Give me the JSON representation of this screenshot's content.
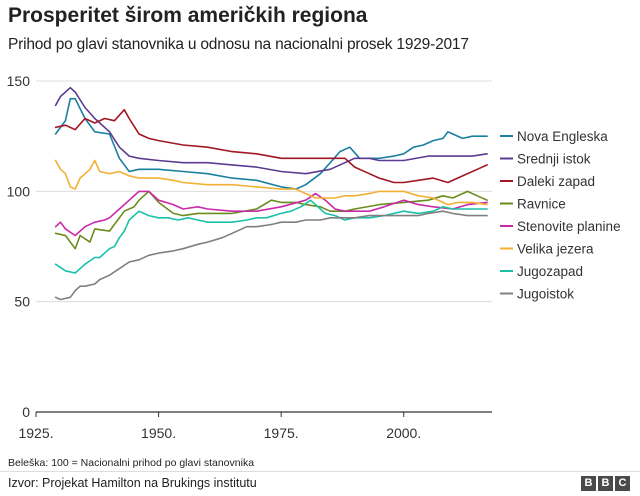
{
  "header": {
    "title": "Prosperitet širom američkih regiona",
    "subtitle": "Prihod po glavi stanovnika u odnosu na nacionalni prosek 1929-2017"
  },
  "footer": {
    "note": "Beleška: 100 = Nacionalni prihod po glavi stanovnika",
    "source": "Izvor: Projekat Hamilton na Brukings institutu",
    "logo": [
      "B",
      "B",
      "C"
    ]
  },
  "chart_data": {
    "type": "line",
    "title": "Prosperitet širom američkih regiona",
    "subtitle": "Prihod po glavi stanovnika u odnosu na nacionalni prosek 1929-2017",
    "xlim": [
      1925,
      2018
    ],
    "ylim": [
      0,
      155
    ],
    "x_ticks": [
      1925,
      1950,
      1975,
      2000
    ],
    "x_tick_labels": [
      "1925.",
      "1950.",
      "1975.",
      "2000."
    ],
    "y_ticks": [
      0,
      50,
      100,
      150
    ],
    "grid": true,
    "legend_position": "right",
    "series": [
      {
        "name": "Nova Engleska",
        "color": "#1a80a0",
        "points": [
          [
            1929,
            126
          ],
          [
            1931,
            132
          ],
          [
            1932,
            142
          ],
          [
            1933,
            142
          ],
          [
            1935,
            133
          ],
          [
            1937,
            127
          ],
          [
            1940,
            126
          ],
          [
            1942,
            115
          ],
          [
            1944,
            109
          ],
          [
            1946,
            110
          ],
          [
            1950,
            110
          ],
          [
            1955,
            109
          ],
          [
            1960,
            108
          ],
          [
            1965,
            106
          ],
          [
            1970,
            105
          ],
          [
            1975,
            102
          ],
          [
            1978,
            101
          ],
          [
            1980,
            103
          ],
          [
            1983,
            108
          ],
          [
            1985,
            113
          ],
          [
            1987,
            118
          ],
          [
            1989,
            120
          ],
          [
            1991,
            115
          ],
          [
            1993,
            115
          ],
          [
            1995,
            115
          ],
          [
            1998,
            116
          ],
          [
            2000,
            117
          ],
          [
            2002,
            120
          ],
          [
            2004,
            121
          ],
          [
            2006,
            123
          ],
          [
            2008,
            124
          ],
          [
            2009,
            127
          ],
          [
            2010,
            126
          ],
          [
            2012,
            124
          ],
          [
            2014,
            125
          ],
          [
            2017,
            125
          ]
        ]
      },
      {
        "name": "Srednji istok",
        "color": "#5c3b91",
        "points": [
          [
            1929,
            139
          ],
          [
            1930,
            143
          ],
          [
            1932,
            147
          ],
          [
            1933,
            145
          ],
          [
            1935,
            138
          ],
          [
            1937,
            133
          ],
          [
            1940,
            127
          ],
          [
            1942,
            120
          ],
          [
            1944,
            116
          ],
          [
            1946,
            115
          ],
          [
            1950,
            114
          ],
          [
            1955,
            113
          ],
          [
            1960,
            113
          ],
          [
            1965,
            112
          ],
          [
            1970,
            111
          ],
          [
            1975,
            109
          ],
          [
            1980,
            108
          ],
          [
            1985,
            110
          ],
          [
            1988,
            113
          ],
          [
            1990,
            115
          ],
          [
            1993,
            115
          ],
          [
            1995,
            114
          ],
          [
            2000,
            114
          ],
          [
            2005,
            116
          ],
          [
            2010,
            116
          ],
          [
            2014,
            116
          ],
          [
            2017,
            117
          ]
        ]
      },
      {
        "name": "Daleki zapad",
        "color": "#a11722",
        "points": [
          [
            1929,
            129
          ],
          [
            1931,
            130
          ],
          [
            1933,
            128
          ],
          [
            1935,
            133
          ],
          [
            1937,
            131
          ],
          [
            1939,
            133
          ],
          [
            1941,
            132
          ],
          [
            1943,
            137
          ],
          [
            1944,
            133
          ],
          [
            1946,
            126
          ],
          [
            1948,
            124
          ],
          [
            1950,
            123
          ],
          [
            1955,
            121
          ],
          [
            1960,
            120
          ],
          [
            1965,
            118
          ],
          [
            1970,
            117
          ],
          [
            1975,
            115
          ],
          [
            1980,
            115
          ],
          [
            1985,
            115
          ],
          [
            1988,
            115
          ],
          [
            1990,
            111
          ],
          [
            1993,
            108
          ],
          [
            1995,
            106
          ],
          [
            1998,
            104
          ],
          [
            2000,
            104
          ],
          [
            2003,
            105
          ],
          [
            2006,
            106
          ],
          [
            2009,
            104
          ],
          [
            2012,
            107
          ],
          [
            2015,
            110
          ],
          [
            2017,
            112
          ]
        ]
      },
      {
        "name": "Ravnice",
        "color": "#6b8c1d",
        "points": [
          [
            1929,
            81
          ],
          [
            1931,
            80
          ],
          [
            1933,
            74
          ],
          [
            1934,
            80
          ],
          [
            1936,
            77
          ],
          [
            1937,
            83
          ],
          [
            1940,
            82
          ],
          [
            1943,
            91
          ],
          [
            1945,
            93
          ],
          [
            1946,
            96
          ],
          [
            1947,
            98
          ],
          [
            1948,
            100
          ],
          [
            1950,
            95
          ],
          [
            1953,
            90
          ],
          [
            1955,
            89
          ],
          [
            1958,
            90
          ],
          [
            1960,
            90
          ],
          [
            1965,
            90
          ],
          [
            1970,
            92
          ],
          [
            1973,
            96
          ],
          [
            1975,
            95
          ],
          [
            1978,
            95
          ],
          [
            1980,
            94
          ],
          [
            1983,
            93
          ],
          [
            1985,
            91
          ],
          [
            1988,
            91
          ],
          [
            1990,
            92
          ],
          [
            1995,
            94
          ],
          [
            2000,
            95
          ],
          [
            2005,
            96
          ],
          [
            2008,
            98
          ],
          [
            2010,
            97
          ],
          [
            2013,
            100
          ],
          [
            2015,
            98
          ],
          [
            2017,
            96
          ]
        ]
      },
      {
        "name": "Stenovite planine",
        "color": "#c92aa8",
        "points": [
          [
            1929,
            84
          ],
          [
            1930,
            86
          ],
          [
            1931,
            83
          ],
          [
            1933,
            80
          ],
          [
            1935,
            84
          ],
          [
            1937,
            86
          ],
          [
            1939,
            87
          ],
          [
            1940,
            88
          ],
          [
            1942,
            92
          ],
          [
            1944,
            96
          ],
          [
            1946,
            100
          ],
          [
            1948,
            100
          ],
          [
            1950,
            96
          ],
          [
            1953,
            94
          ],
          [
            1955,
            92
          ],
          [
            1958,
            93
          ],
          [
            1960,
            92
          ],
          [
            1965,
            91
          ],
          [
            1970,
            91
          ],
          [
            1975,
            93
          ],
          [
            1980,
            96
          ],
          [
            1982,
            99
          ],
          [
            1984,
            96
          ],
          [
            1986,
            92
          ],
          [
            1988,
            91
          ],
          [
            1990,
            91
          ],
          [
            1993,
            91
          ],
          [
            1996,
            93
          ],
          [
            2000,
            96
          ],
          [
            2003,
            94
          ],
          [
            2006,
            93
          ],
          [
            2010,
            92
          ],
          [
            2013,
            94
          ],
          [
            2017,
            95
          ]
        ]
      },
      {
        "name": "Velika jezera",
        "color": "#f2b134",
        "points": [
          [
            1929,
            114
          ],
          [
            1930,
            110
          ],
          [
            1931,
            108
          ],
          [
            1932,
            102
          ],
          [
            1933,
            101
          ],
          [
            1934,
            106
          ],
          [
            1936,
            110
          ],
          [
            1937,
            114
          ],
          [
            1938,
            109
          ],
          [
            1940,
            108
          ],
          [
            1942,
            109
          ],
          [
            1944,
            107
          ],
          [
            1946,
            106
          ],
          [
            1950,
            106
          ],
          [
            1953,
            105
          ],
          [
            1955,
            104
          ],
          [
            1960,
            103
          ],
          [
            1965,
            103
          ],
          [
            1970,
            102
          ],
          [
            1975,
            101
          ],
          [
            1978,
            101
          ],
          [
            1980,
            99
          ],
          [
            1982,
            97
          ],
          [
            1984,
            97
          ],
          [
            1986,
            97
          ],
          [
            1988,
            98
          ],
          [
            1990,
            98
          ],
          [
            1993,
            99
          ],
          [
            1995,
            100
          ],
          [
            1998,
            100
          ],
          [
            2000,
            100
          ],
          [
            2003,
            98
          ],
          [
            2006,
            97
          ],
          [
            2009,
            94
          ],
          [
            2011,
            95
          ],
          [
            2014,
            95
          ],
          [
            2017,
            94
          ]
        ]
      },
      {
        "name": "Jugozapad",
        "color": "#1bc0a8",
        "points": [
          [
            1929,
            67
          ],
          [
            1931,
            64
          ],
          [
            1933,
            63
          ],
          [
            1935,
            67
          ],
          [
            1937,
            70
          ],
          [
            1938,
            70
          ],
          [
            1940,
            74
          ],
          [
            1941,
            75
          ],
          [
            1942,
            79
          ],
          [
            1943,
            82
          ],
          [
            1944,
            87
          ],
          [
            1946,
            91
          ],
          [
            1948,
            89
          ],
          [
            1950,
            88
          ],
          [
            1952,
            88
          ],
          [
            1954,
            87
          ],
          [
            1956,
            88
          ],
          [
            1958,
            87
          ],
          [
            1960,
            86
          ],
          [
            1963,
            86
          ],
          [
            1965,
            86
          ],
          [
            1968,
            87
          ],
          [
            1970,
            88
          ],
          [
            1972,
            88
          ],
          [
            1975,
            90
          ],
          [
            1977,
            91
          ],
          [
            1979,
            93
          ],
          [
            1981,
            96
          ],
          [
            1982,
            94
          ],
          [
            1984,
            90
          ],
          [
            1986,
            89
          ],
          [
            1988,
            87
          ],
          [
            1990,
            88
          ],
          [
            1993,
            88
          ],
          [
            1996,
            89
          ],
          [
            2000,
            91
          ],
          [
            2003,
            90
          ],
          [
            2006,
            91
          ],
          [
            2008,
            93
          ],
          [
            2010,
            92
          ],
          [
            2013,
            92
          ],
          [
            2015,
            92
          ],
          [
            2017,
            92
          ]
        ]
      },
      {
        "name": "Jugoistok",
        "color": "#808080",
        "points": [
          [
            1929,
            52
          ],
          [
            1930,
            51
          ],
          [
            1932,
            52
          ],
          [
            1933,
            55
          ],
          [
            1934,
            57
          ],
          [
            1935,
            57
          ],
          [
            1937,
            58
          ],
          [
            1938,
            60
          ],
          [
            1940,
            62
          ],
          [
            1942,
            65
          ],
          [
            1944,
            68
          ],
          [
            1946,
            69
          ],
          [
            1948,
            71
          ],
          [
            1950,
            72
          ],
          [
            1953,
            73
          ],
          [
            1955,
            74
          ],
          [
            1958,
            76
          ],
          [
            1960,
            77
          ],
          [
            1963,
            79
          ],
          [
            1965,
            81
          ],
          [
            1968,
            84
          ],
          [
            1970,
            84
          ],
          [
            1973,
            85
          ],
          [
            1975,
            86
          ],
          [
            1978,
            86
          ],
          [
            1980,
            87
          ],
          [
            1983,
            87
          ],
          [
            1985,
            88
          ],
          [
            1988,
            88
          ],
          [
            1990,
            88
          ],
          [
            1993,
            89
          ],
          [
            1995,
            89
          ],
          [
            1998,
            89
          ],
          [
            2000,
            89
          ],
          [
            2003,
            89
          ],
          [
            2005,
            90
          ],
          [
            2008,
            91
          ],
          [
            2010,
            90
          ],
          [
            2013,
            89
          ],
          [
            2017,
            89
          ]
        ]
      }
    ]
  }
}
